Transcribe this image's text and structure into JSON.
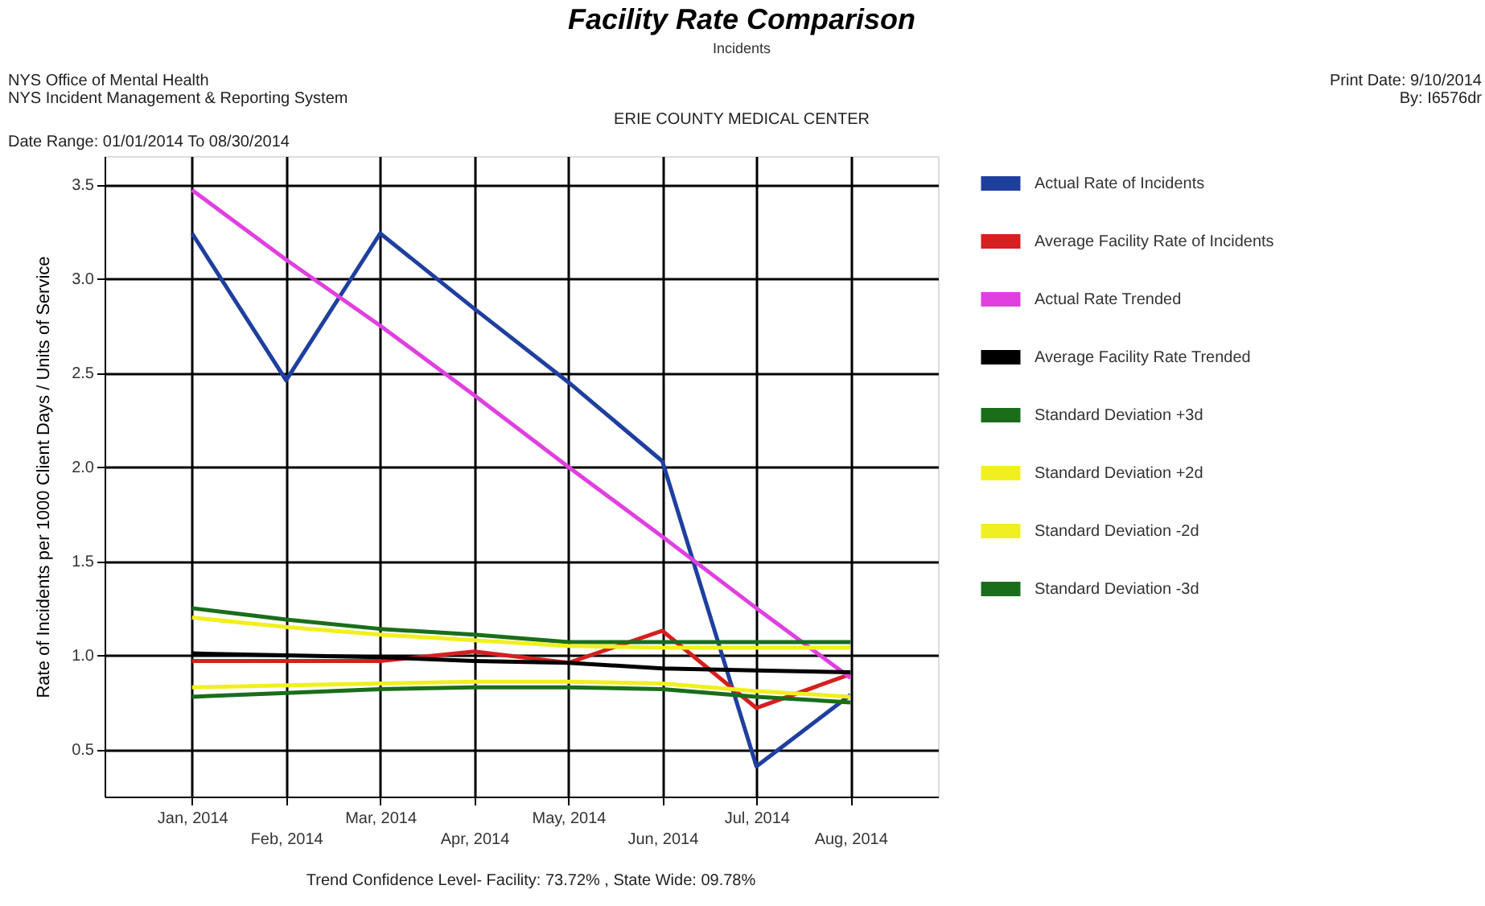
{
  "chart_data": {
    "type": "line",
    "title": "Facility Rate Comparison",
    "subtitle": "Incidents",
    "ylabel": "Rate of Incidents per 1000 Client Days / Units of Service",
    "categories": [
      "Jan, 2014",
      "Feb, 2014",
      "Mar, 2014",
      "Apr, 2014",
      "May, 2014",
      "Jun, 2014",
      "Jul, 2014",
      "Aug, 2014"
    ],
    "series": [
      {
        "name": "Actual Rate of Incidents",
        "color": "#1f3f9f",
        "values": [
          3.24,
          2.46,
          3.24,
          2.84,
          2.45,
          2.03,
          0.41,
          0.79
        ]
      },
      {
        "name": "Average Facility Rate of Incidents",
        "color": "#d42020",
        "values": [
          0.97,
          0.97,
          0.97,
          1.02,
          0.96,
          1.13,
          0.72,
          0.9
        ]
      },
      {
        "name": "Actual Rate Trended",
        "color": "#e040e0",
        "values": [
          3.47,
          3.1,
          2.75,
          2.38,
          2.0,
          1.63,
          1.25,
          0.88
        ]
      },
      {
        "name": "Average Facility Rate Trended",
        "color": "#000000",
        "values": [
          1.01,
          1.0,
          0.99,
          0.97,
          0.96,
          0.93,
          0.92,
          0.91
        ]
      },
      {
        "name": "Standard Deviation +3d",
        "color": "#1a6e1a",
        "values": [
          1.25,
          1.19,
          1.14,
          1.11,
          1.07,
          1.07,
          1.07,
          1.07
        ]
      },
      {
        "name": "Standard Deviation +2d",
        "color": "#f0f020",
        "values": [
          1.2,
          1.15,
          1.11,
          1.08,
          1.05,
          1.04,
          1.04,
          1.04
        ]
      },
      {
        "name": "Standard Deviation -2d",
        "color": "#f0f020",
        "values": [
          0.83,
          0.84,
          0.85,
          0.86,
          0.86,
          0.85,
          0.81,
          0.78
        ]
      },
      {
        "name": "Standard Deviation -3d",
        "color": "#1a6e1a",
        "values": [
          0.78,
          0.8,
          0.82,
          0.83,
          0.83,
          0.82,
          0.78,
          0.75
        ]
      }
    ],
    "ylim": [
      0.25,
      3.65
    ],
    "yticks": [
      0.5,
      {
        "value": 1,
        "label": "1.0"
      },
      1.5,
      {
        "value": 2,
        "label": "2.0"
      },
      2.5,
      {
        "value": 3,
        "label": "3.0"
      },
      3.5
    ],
    "grid": true,
    "legend": "right",
    "marker": "none",
    "line_style": "solid",
    "annotations": [
      "NYS Office of Mental Health",
      "NYS Incident Management & Reporting System",
      "Print Date:  9/10/2014",
      "By: I6576dr",
      "ERIE COUNTY MEDICAL CENTER",
      "Date Range: 01/01/2014 To 08/30/2014",
      "Trend Confidence Level- Facility: 73.72% , State Wide: 09.78%"
    ]
  }
}
